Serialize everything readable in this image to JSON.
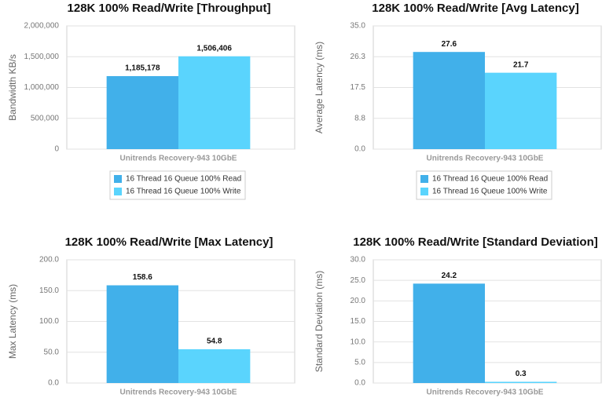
{
  "chart_data": [
    {
      "type": "bar",
      "title": "128K 100% Read/Write [Throughput]",
      "y_label": "Bandwidth KB/s",
      "categories": [
        "Unitrends Recovery-943 10GbE"
      ],
      "series": [
        {
          "name": "16 Thread 16 Queue 100% Read",
          "color": "#41b0ea",
          "values": [
            1185178
          ],
          "value_labels": [
            "1,185,178"
          ]
        },
        {
          "name": "16 Thread 16 Queue 100% Write",
          "color": "#5ad4fd",
          "values": [
            1506406
          ],
          "value_labels": [
            "1,506,406"
          ]
        }
      ],
      "ylim": [
        0,
        2000000
      ],
      "yticks": [
        0,
        {
          "value": 500000,
          "label": "500,000"
        },
        {
          "value": 1000000,
          "label": "1,000,000"
        },
        {
          "value": 1500000,
          "label": "1,500,000"
        },
        {
          "value": 2000000,
          "label": "2,000,000"
        }
      ],
      "grid": true,
      "legend": "bottom"
    },
    {
      "type": "bar",
      "title": "128K 100% Read/Write [Avg Latency]",
      "y_label": "Average Latency (ms)",
      "categories": [
        "Unitrends Recovery-943 10GbE"
      ],
      "series": [
        {
          "name": "16 Thread 16 Queue 100% Read",
          "color": "#41b0ea",
          "values": [
            27.6
          ]
        },
        {
          "name": "16 Thread 16 Queue 100% Write",
          "color": "#5ad4fd",
          "values": [
            21.7
          ]
        }
      ],
      "ylim": [
        0,
        35
      ],
      "yticks": [
        {
          "value": 0,
          "label": "0.0"
        },
        {
          "value": 8.75,
          "label": "8.8"
        },
        {
          "value": 17.5,
          "label": "17.5"
        },
        {
          "value": 26.25,
          "label": "26.3"
        },
        {
          "value": 35,
          "label": "35.0"
        }
      ],
      "grid": true,
      "legend": "bottom"
    },
    {
      "type": "bar",
      "title": "128K 100% Read/Write [Max Latency]",
      "y_label": "Max Latency (ms)",
      "categories": [
        "Unitrends Recovery-943 10GbE"
      ],
      "series": [
        {
          "color": "#41b0ea",
          "values": [
            158.6
          ]
        },
        {
          "color": "#5ad4fd",
          "values": [
            54.8
          ]
        }
      ],
      "ylim": [
        0,
        200
      ],
      "yticks": [
        {
          "value": 0,
          "label": "0.0"
        },
        {
          "value": 50,
          "label": "50.0"
        },
        {
          "value": 100,
          "label": "100.0"
        },
        {
          "value": 150,
          "label": "150.0"
        },
        {
          "value": 200,
          "label": "200.0"
        }
      ],
      "grid": true
    },
    {
      "type": "bar",
      "title": "128K 100% Read/Write [Standard Deviation]",
      "y_label": "Standard Deviation (ms)",
      "categories": [
        "Unitrends Recovery-943 10GbE"
      ],
      "series": [
        {
          "color": "#41b0ea",
          "values": [
            24.2
          ]
        },
        {
          "color": "#5ad4fd",
          "values": [
            0.3
          ]
        }
      ],
      "ylim": [
        0,
        30
      ],
      "yticks": [
        {
          "value": 0,
          "label": "0.0"
        },
        {
          "value": 5,
          "label": "5.0"
        },
        {
          "value": 10,
          "label": "10.0"
        },
        {
          "value": 15,
          "label": "15.0"
        },
        {
          "value": 20,
          "label": "20.0"
        },
        {
          "value": 25,
          "label": "25.0"
        },
        {
          "value": 30,
          "label": "30.0"
        }
      ],
      "grid": true
    }
  ]
}
